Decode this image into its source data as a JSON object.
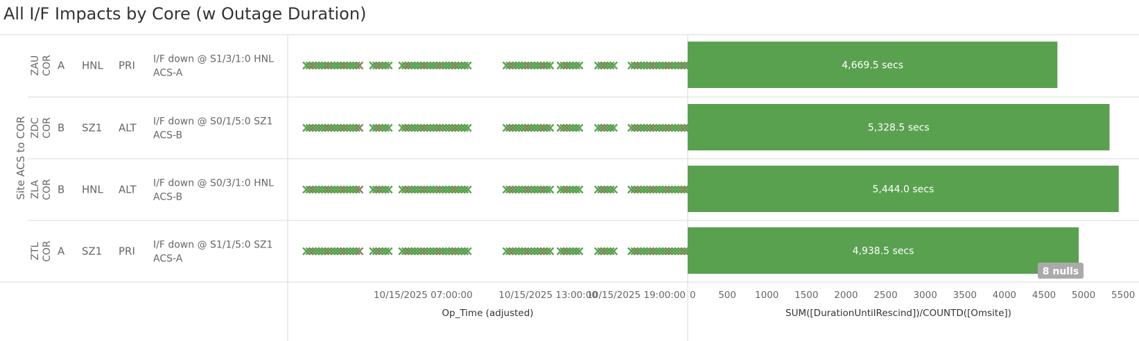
{
  "title": "All I/F Impacts by Core (w Outage Duration)",
  "colors": {
    "bar": "#59a14f",
    "marker": "#59a14f",
    "marker_alt": "#8c7d5b",
    "grid": "#d9d9d9",
    "nulls_badge": "#aaaaaa"
  },
  "row_header_label": "Site ACS to COR",
  "rows": [
    {
      "site": "ZAU",
      "core": "COR",
      "acs": "A",
      "hub": "HNL",
      "role": "PRI",
      "detail": "I/F down @ S1/3/1:0 HNL ACS-A"
    },
    {
      "site": "ZDC",
      "core": "COR",
      "acs": "B",
      "hub": "SZ1",
      "role": "ALT",
      "detail": "I/F down @ S0/1/5:0 SZ1 ACS-B"
    },
    {
      "site": "ZLA",
      "core": "COR",
      "acs": "B",
      "hub": "HNL",
      "role": "ALT",
      "detail": "I/F down @ S0/3/1:0 HNL ACS-B"
    },
    {
      "site": "ZTL",
      "core": "COR",
      "acs": "A",
      "hub": "SZ1",
      "role": "PRI",
      "detail": "I/F down @ S1/1/5:0 SZ1 ACS-A"
    }
  ],
  "chart_data": [
    {
      "type": "scatter",
      "marker": "x",
      "xlabel": "Op_Time (adjusted)",
      "x_ticks": [
        "10/15/2025 07:00:00",
        "10/15/2025 13:00:00",
        "10/15/2025 19:00:00"
      ],
      "x_range_hours": [
        -6.5,
        12.7
      ],
      "event_clusters_hours": [
        [
          -5.6,
          -3.0
        ],
        [
          -2.4,
          -1.6
        ],
        [
          -1.0,
          2.2
        ],
        [
          4.0,
          6.2
        ],
        [
          6.6,
          7.6
        ],
        [
          8.4,
          9.2
        ],
        [
          10.0,
          13.0
        ]
      ]
    },
    {
      "type": "bar",
      "orientation": "horizontal",
      "xlabel": "SUM([DurationUntilRescind])/COUNTD([Omsite])",
      "x_ticks": [
        0,
        500,
        1000,
        1500,
        2000,
        2500,
        3000,
        3500,
        4000,
        4500,
        5000,
        5500
      ],
      "xlim": [
        0,
        5700
      ],
      "categories": [
        "ZAU",
        "ZDC",
        "ZLA",
        "ZTL"
      ],
      "values": [
        4669.5,
        5328.5,
        5444.0,
        4938.5
      ],
      "data_labels": [
        "4,669.5 secs",
        "5,328.5 secs",
        "5,444.0 secs",
        "4,938.5 secs"
      ],
      "nulls_badge": "8 nulls"
    }
  ]
}
